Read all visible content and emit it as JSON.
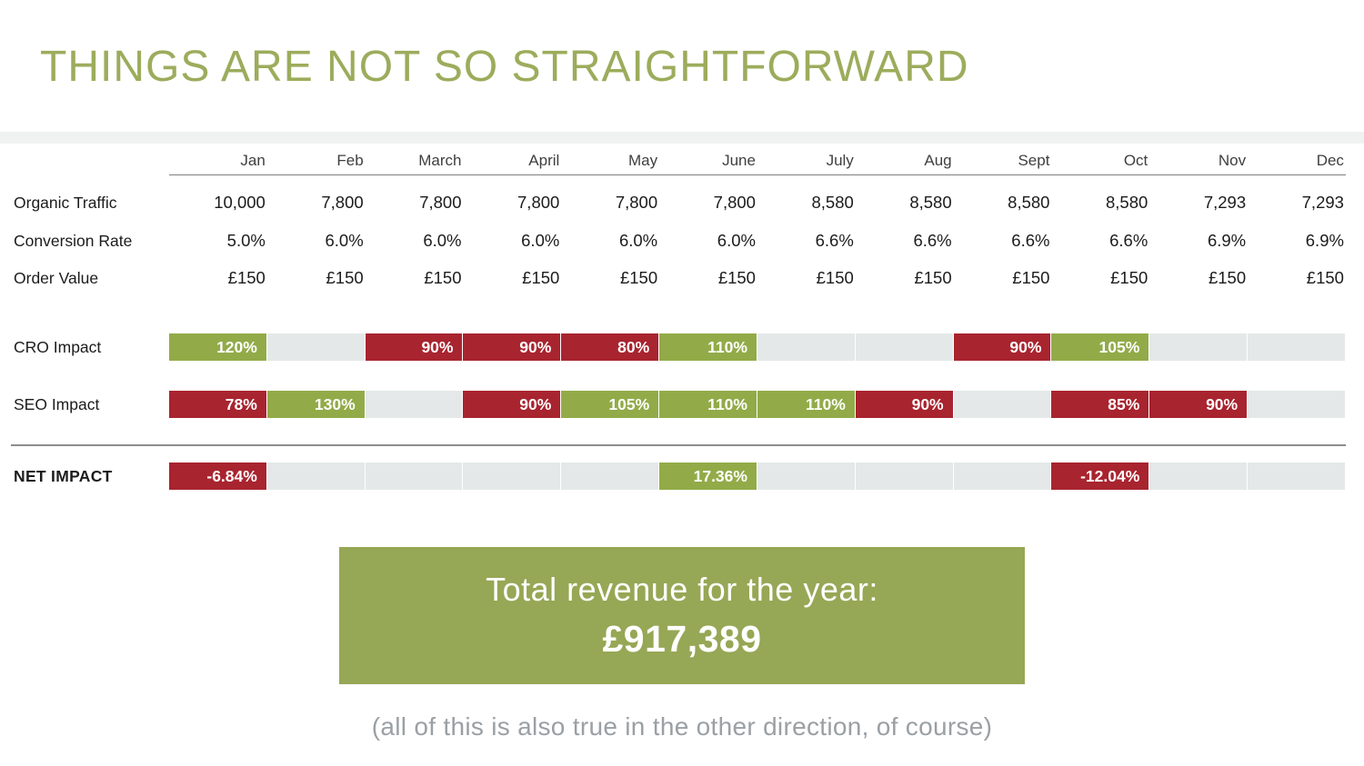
{
  "title": "THINGS ARE NOT SO STRAIGHTFORWARD",
  "colors": {
    "title_green": "#9cac5c",
    "cell_green": "#92ab48",
    "cell_red": "#a8242f",
    "cell_empty_gray": "#e4e8e9",
    "summary_box_green": "#96a755",
    "footnote_gray": "#9aa0a4",
    "top_band_gray": "#f0f1f1"
  },
  "chart_data": {
    "type": "table",
    "title": "THINGS ARE NOT SO STRAIGHTFORWARD",
    "categories": [
      "Jan",
      "Feb",
      "March",
      "April",
      "May",
      "June",
      "July",
      "Aug",
      "Sept",
      "Oct",
      "Nov",
      "Dec"
    ],
    "series": [
      {
        "name": "Organic Traffic",
        "values": [
          "10,000",
          "7,800",
          "7,800",
          "7,800",
          "7,800",
          "7,800",
          "8,580",
          "8,580",
          "8,580",
          "8,580",
          "7,293",
          "7,293"
        ]
      },
      {
        "name": "Conversion Rate",
        "values": [
          "5.0%",
          "6.0%",
          "6.0%",
          "6.0%",
          "6.0%",
          "6.0%",
          "6.6%",
          "6.6%",
          "6.6%",
          "6.6%",
          "6.9%",
          "6.9%"
        ]
      },
      {
        "name": "Order Value",
        "values": [
          "£150",
          "£150",
          "£150",
          "£150",
          "£150",
          "£150",
          "£150",
          "£150",
          "£150",
          "£150",
          "£150",
          "£150"
        ]
      },
      {
        "name": "CRO Impact",
        "values": [
          "120%",
          "",
          "90%",
          "90%",
          "80%",
          "110%",
          "",
          "",
          "90%",
          "105%",
          "",
          ""
        ],
        "states": [
          "green",
          "empty",
          "red",
          "red",
          "red",
          "green",
          "empty",
          "empty",
          "red",
          "green",
          "empty",
          "empty"
        ]
      },
      {
        "name": "SEO Impact",
        "values": [
          "78%",
          "130%",
          "",
          "90%",
          "105%",
          "110%",
          "110%",
          "90%",
          "",
          "85%",
          "90%",
          ""
        ],
        "states": [
          "red",
          "green",
          "empty",
          "red",
          "green",
          "green",
          "green",
          "red",
          "empty",
          "red",
          "red",
          "empty"
        ]
      },
      {
        "name": "NET IMPACT",
        "values": [
          "-6.84%",
          "",
          "",
          "",
          "",
          "17.36%",
          "",
          "",
          "",
          "-12.04%",
          "",
          ""
        ],
        "states": [
          "red",
          "empty",
          "empty",
          "empty",
          "empty",
          "green",
          "empty",
          "empty",
          "empty",
          "red",
          "empty",
          "empty"
        ]
      }
    ],
    "legend_position": "none",
    "grid": false
  },
  "summary_box": {
    "line1": "Total revenue for the year:",
    "line2": "£917,389"
  },
  "footnote": "(all of this is also true in the other direction, of course)"
}
